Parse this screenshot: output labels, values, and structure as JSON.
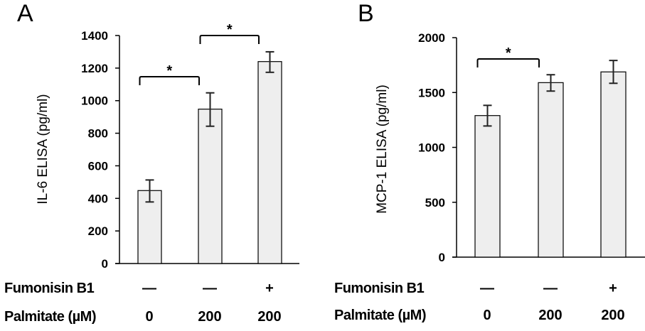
{
  "chart_data": [
    {
      "type": "bar",
      "panel": "A",
      "ylabel": "IL-6 ELISA (pg/ml)",
      "ylim": [
        0,
        1400
      ],
      "yticks": [
        0,
        200,
        400,
        600,
        800,
        1000,
        1200,
        1400
      ],
      "categories": [
        "1",
        "2",
        "3"
      ],
      "values": [
        448,
        948,
        1240
      ],
      "error_low": [
        378,
        843,
        1174
      ],
      "error_high": [
        513,
        1048,
        1300
      ],
      "bar_color": "#eeeeee",
      "significance": [
        {
          "from": 0,
          "to": 1,
          "label": "*"
        },
        {
          "from": 1,
          "to": 2,
          "label": "*"
        }
      ],
      "conditions": [
        {
          "label": "Fumonisin B1",
          "values": [
            "—",
            "—",
            "+"
          ]
        },
        {
          "label": "Palmitate (µM)",
          "values": [
            "0",
            "200",
            "200"
          ]
        }
      ]
    },
    {
      "type": "bar",
      "panel": "B",
      "ylabel": "MCP-1 ELISA (pg/ml)",
      "ylim": [
        0,
        2000
      ],
      "yticks": [
        0,
        500,
        1000,
        1500,
        2000
      ],
      "categories": [
        "1",
        "2",
        "3"
      ],
      "values": [
        1290,
        1590,
        1688
      ],
      "error_low": [
        1195,
        1513,
        1584
      ],
      "error_high": [
        1383,
        1662,
        1792
      ],
      "bar_color": "#eeeeee",
      "significance": [
        {
          "from": 0,
          "to": 1,
          "label": "*"
        }
      ],
      "conditions": [
        {
          "label": "Fumonisin B1",
          "values": [
            "—",
            "—",
            "+"
          ]
        },
        {
          "label": "Palmitate (µM)",
          "values": [
            "0",
            "200",
            "200"
          ]
        }
      ]
    }
  ]
}
